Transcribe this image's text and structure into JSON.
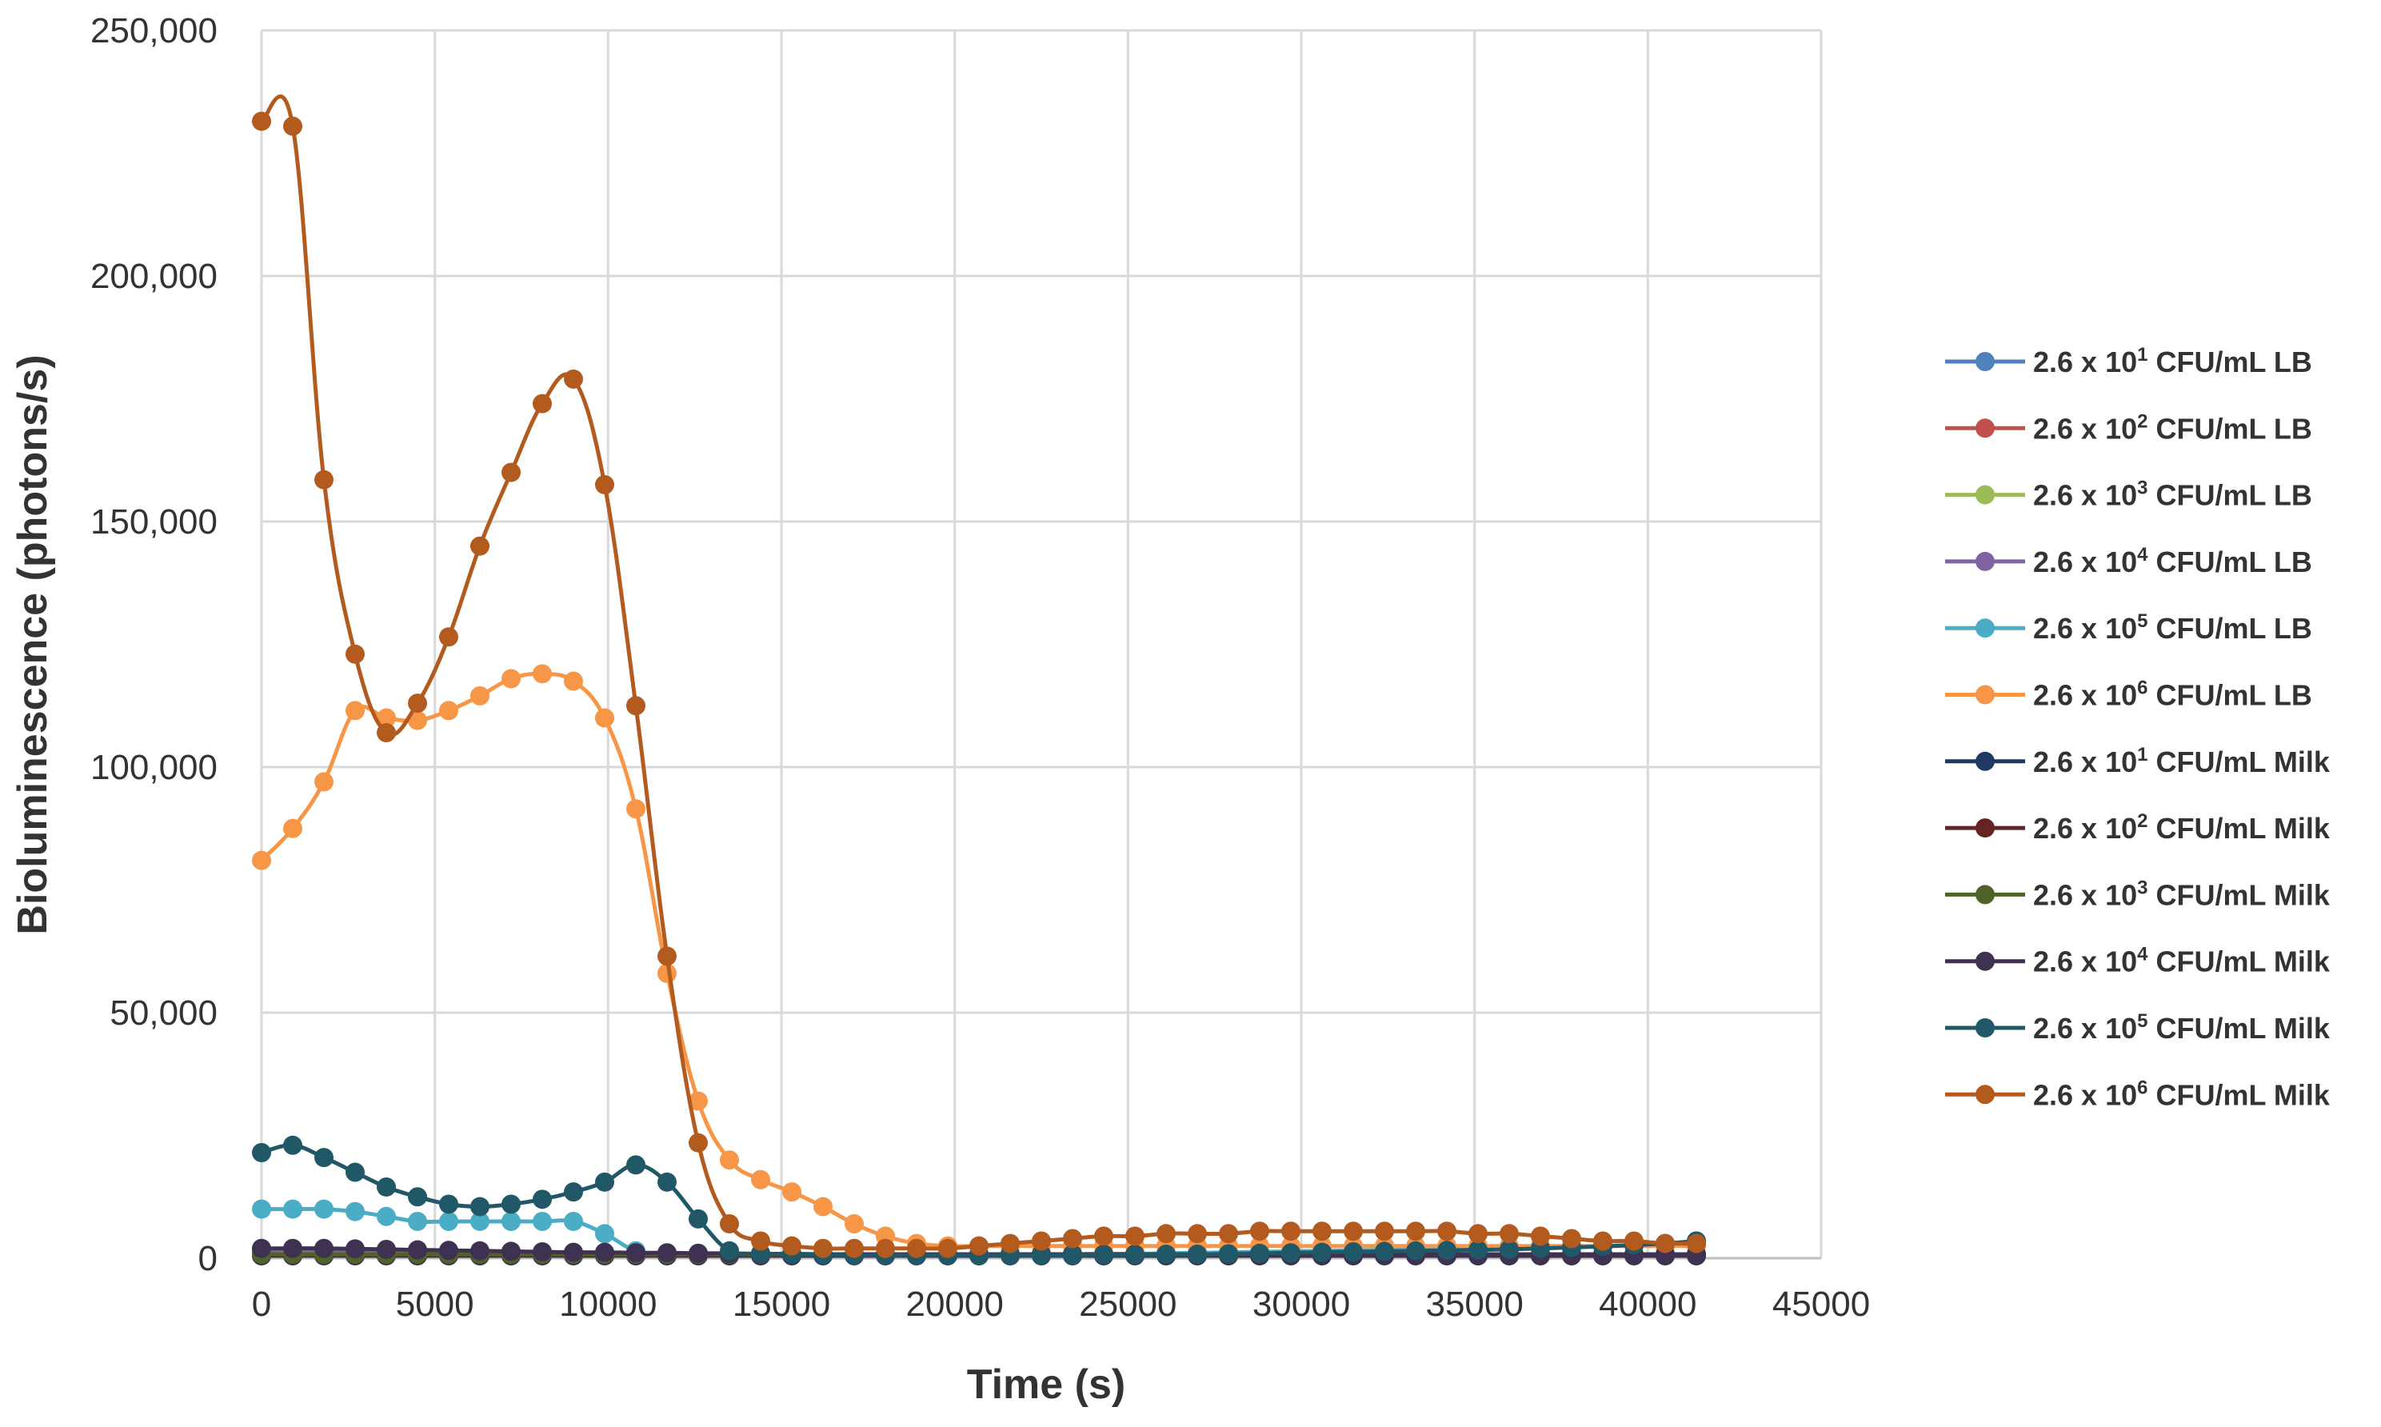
{
  "chart_data": {
    "type": "line",
    "title": "",
    "xlabel": "Time (s)",
    "ylabel": "Bioluminescence (photons/s)",
    "xlim": [
      0,
      45000
    ],
    "ylim": [
      0,
      250000
    ],
    "x_ticks": [
      0,
      5000,
      10000,
      15000,
      20000,
      25000,
      30000,
      35000,
      40000,
      45000
    ],
    "x_tick_labels": [
      "0",
      "5000",
      "10000",
      "15000",
      "20000",
      "25000",
      "30000",
      "35000",
      "40000",
      "45000"
    ],
    "y_ticks": [
      0,
      50000,
      100000,
      150000,
      200000,
      250000
    ],
    "y_tick_labels": [
      "0",
      "50,000",
      "100,000",
      "150,000",
      "200,000",
      "250,000"
    ],
    "grid": true,
    "legend_position": "right",
    "x": [
      0,
      900,
      1800,
      2700,
      3600,
      4500,
      5400,
      6300,
      7200,
      8100,
      9000,
      9900,
      10800,
      11700,
      12600,
      13500,
      14400,
      15300,
      16200,
      17100,
      18000,
      18900,
      19800,
      20700,
      21600,
      22500,
      23400,
      24300,
      25200,
      26100,
      27000,
      27900,
      28800,
      29700,
      30600,
      31500,
      32400,
      33300,
      34200,
      35100,
      36000,
      36900,
      37800,
      38700,
      39600,
      40500,
      41400
    ],
    "series": [
      {
        "name": "2.6 x 10",
        "sup": "1",
        "suffix": " CFU/mL LB",
        "color": "#4f81bd",
        "values": [
          500,
          500,
          500,
          500,
          500,
          500,
          500,
          500,
          500,
          500,
          500,
          500,
          500,
          500,
          500,
          500,
          500,
          500,
          500,
          500,
          500,
          500,
          500,
          500,
          500,
          500,
          500,
          500,
          500,
          500,
          500,
          500,
          500,
          500,
          500,
          500,
          500,
          500,
          500,
          500,
          500,
          500,
          500,
          500,
          500,
          500,
          500
        ]
      },
      {
        "name": "2.6 x 10",
        "sup": "2",
        "suffix": " CFU/mL LB",
        "color": "#c0504d",
        "values": [
          500,
          500,
          500,
          500,
          500,
          500,
          500,
          500,
          500,
          500,
          500,
          500,
          500,
          500,
          500,
          500,
          500,
          500,
          500,
          500,
          500,
          500,
          500,
          500,
          500,
          500,
          500,
          500,
          500,
          500,
          500,
          500,
          500,
          500,
          500,
          500,
          500,
          500,
          500,
          500,
          500,
          500,
          500,
          500,
          500,
          500,
          500
        ]
      },
      {
        "name": "2.6 x 10",
        "sup": "3",
        "suffix": " CFU/mL LB",
        "color": "#9bbb59",
        "values": [
          600,
          600,
          600,
          600,
          600,
          600,
          600,
          600,
          600,
          600,
          600,
          600,
          600,
          600,
          600,
          600,
          600,
          600,
          600,
          600,
          600,
          600,
          600,
          600,
          600,
          600,
          600,
          600,
          600,
          600,
          600,
          600,
          600,
          600,
          600,
          600,
          600,
          600,
          600,
          600,
          600,
          600,
          600,
          600,
          600,
          600,
          600
        ]
      },
      {
        "name": "2.6 x 10",
        "sup": "4",
        "suffix": " CFU/mL LB",
        "color": "#8064a2",
        "values": [
          1500,
          1500,
          1400,
          1400,
          1300,
          1300,
          1200,
          1200,
          1100,
          1100,
          1000,
          1000,
          900,
          900,
          800,
          800,
          700,
          700,
          600,
          600,
          600,
          600,
          600,
          600,
          600,
          600,
          600,
          600,
          600,
          600,
          600,
          600,
          600,
          600,
          600,
          600,
          600,
          600,
          600,
          600,
          600,
          600,
          600,
          600,
          600,
          600,
          600
        ]
      },
      {
        "name": "2.6 x 10",
        "sup": "5",
        "suffix": " CFU/mL LB",
        "color": "#4bacc6",
        "values": [
          10000,
          10000,
          10000,
          9500,
          8500,
          7500,
          7500,
          7500,
          7500,
          7500,
          7500,
          5000,
          1500,
          1000,
          1000,
          800,
          700,
          600,
          600,
          600,
          600,
          600,
          600,
          700,
          700,
          800,
          800,
          900,
          900,
          1000,
          1100,
          1200,
          1300,
          1400,
          1500,
          1600,
          1700,
          1800,
          1900,
          2000,
          2100,
          2200,
          2300,
          2500,
          2700,
          3000,
          3500
        ]
      },
      {
        "name": "2.6 x 10",
        "sup": "6",
        "suffix": " CFU/mL LB",
        "color": "#f79646",
        "values": [
          81000,
          87500,
          97000,
          111500,
          110000,
          109500,
          111500,
          114500,
          118000,
          119000,
          117500,
          110000,
          91500,
          58000,
          32000,
          20000,
          16000,
          13500,
          10500,
          7000,
          4500,
          3000,
          2500,
          2500,
          2500,
          2500,
          2500,
          2500,
          2500,
          2500,
          2500,
          2500,
          2500,
          2500,
          2500,
          2500,
          2500,
          2500,
          2500,
          2500,
          2500,
          2500,
          2500,
          2500,
          2500,
          2500,
          2500
        ]
      },
      {
        "name": "2.6 x 10",
        "sup": "1",
        "suffix": " CFU/mL Milk",
        "color": "#1f3864",
        "values": [
          500,
          500,
          500,
          500,
          500,
          500,
          500,
          500,
          500,
          500,
          500,
          500,
          500,
          500,
          500,
          500,
          500,
          500,
          500,
          500,
          500,
          500,
          500,
          500,
          500,
          500,
          500,
          500,
          500,
          500,
          500,
          500,
          500,
          500,
          500,
          500,
          500,
          500,
          500,
          500,
          500,
          500,
          500,
          500,
          500,
          500,
          500
        ]
      },
      {
        "name": "2.6 x 10",
        "sup": "2",
        "suffix": " CFU/mL Milk",
        "color": "#632423",
        "values": [
          700,
          700,
          700,
          700,
          700,
          700,
          700,
          700,
          700,
          700,
          700,
          700,
          700,
          700,
          700,
          700,
          700,
          700,
          700,
          700,
          700,
          700,
          700,
          700,
          700,
          700,
          700,
          700,
          700,
          700,
          700,
          700,
          700,
          700,
          700,
          700,
          700,
          700,
          700,
          700,
          700,
          700,
          700,
          700,
          700,
          700,
          700
        ]
      },
      {
        "name": "2.6 x 10",
        "sup": "3",
        "suffix": " CFU/mL Milk",
        "color": "#4f6228",
        "values": [
          800,
          800,
          800,
          800,
          800,
          800,
          800,
          800,
          800,
          800,
          800,
          800,
          800,
          800,
          800,
          800,
          800,
          800,
          800,
          800,
          800,
          800,
          800,
          800,
          800,
          800,
          800,
          800,
          800,
          800,
          800,
          800,
          800,
          800,
          800,
          800,
          800,
          800,
          800,
          800,
          800,
          800,
          800,
          800,
          800,
          800,
          800
        ]
      },
      {
        "name": "2.6 x 10",
        "sup": "4",
        "suffix": " CFU/mL Milk",
        "color": "#3f3151",
        "values": [
          2000,
          2000,
          2000,
          1900,
          1800,
          1700,
          1600,
          1500,
          1400,
          1300,
          1200,
          1200,
          1100,
          1100,
          1000,
          1000,
          900,
          900,
          800,
          800,
          800,
          800,
          800,
          800,
          800,
          800,
          800,
          800,
          800,
          800,
          800,
          800,
          800,
          800,
          800,
          800,
          800,
          800,
          800,
          800,
          800,
          800,
          800,
          800,
          800,
          800,
          800
        ]
      },
      {
        "name": "2.6 x 10",
        "sup": "5",
        "suffix": " CFU/mL Milk",
        "color": "#215867",
        "values": [
          21500,
          23000,
          20500,
          17500,
          14500,
          12500,
          11000,
          10500,
          11000,
          12000,
          13500,
          15500,
          19000,
          15500,
          8000,
          1500,
          1000,
          800,
          700,
          600,
          600,
          600,
          600,
          600,
          600,
          600,
          600,
          700,
          700,
          800,
          800,
          900,
          1000,
          1100,
          1200,
          1300,
          1400,
          1500,
          1600,
          1700,
          1800,
          2000,
          2200,
          2400,
          2700,
          3000,
          3500
        ]
      },
      {
        "name": "2.6 x 10",
        "sup": "6",
        "suffix": " CFU/mL Milk",
        "color": "#b35b1e",
        "values": [
          231500,
          230500,
          158500,
          123000,
          107000,
          113000,
          126500,
          145000,
          160000,
          174000,
          179000,
          157500,
          112500,
          61500,
          23500,
          7000,
          3500,
          2500,
          2000,
          2000,
          2000,
          2000,
          2000,
          2500,
          3000,
          3500,
          4000,
          4500,
          4500,
          5000,
          5000,
          5000,
          5500,
          5500,
          5500,
          5500,
          5500,
          5500,
          5500,
          5000,
          5000,
          4500,
          4000,
          3500,
          3500,
          3000,
          3000
        ]
      }
    ]
  }
}
